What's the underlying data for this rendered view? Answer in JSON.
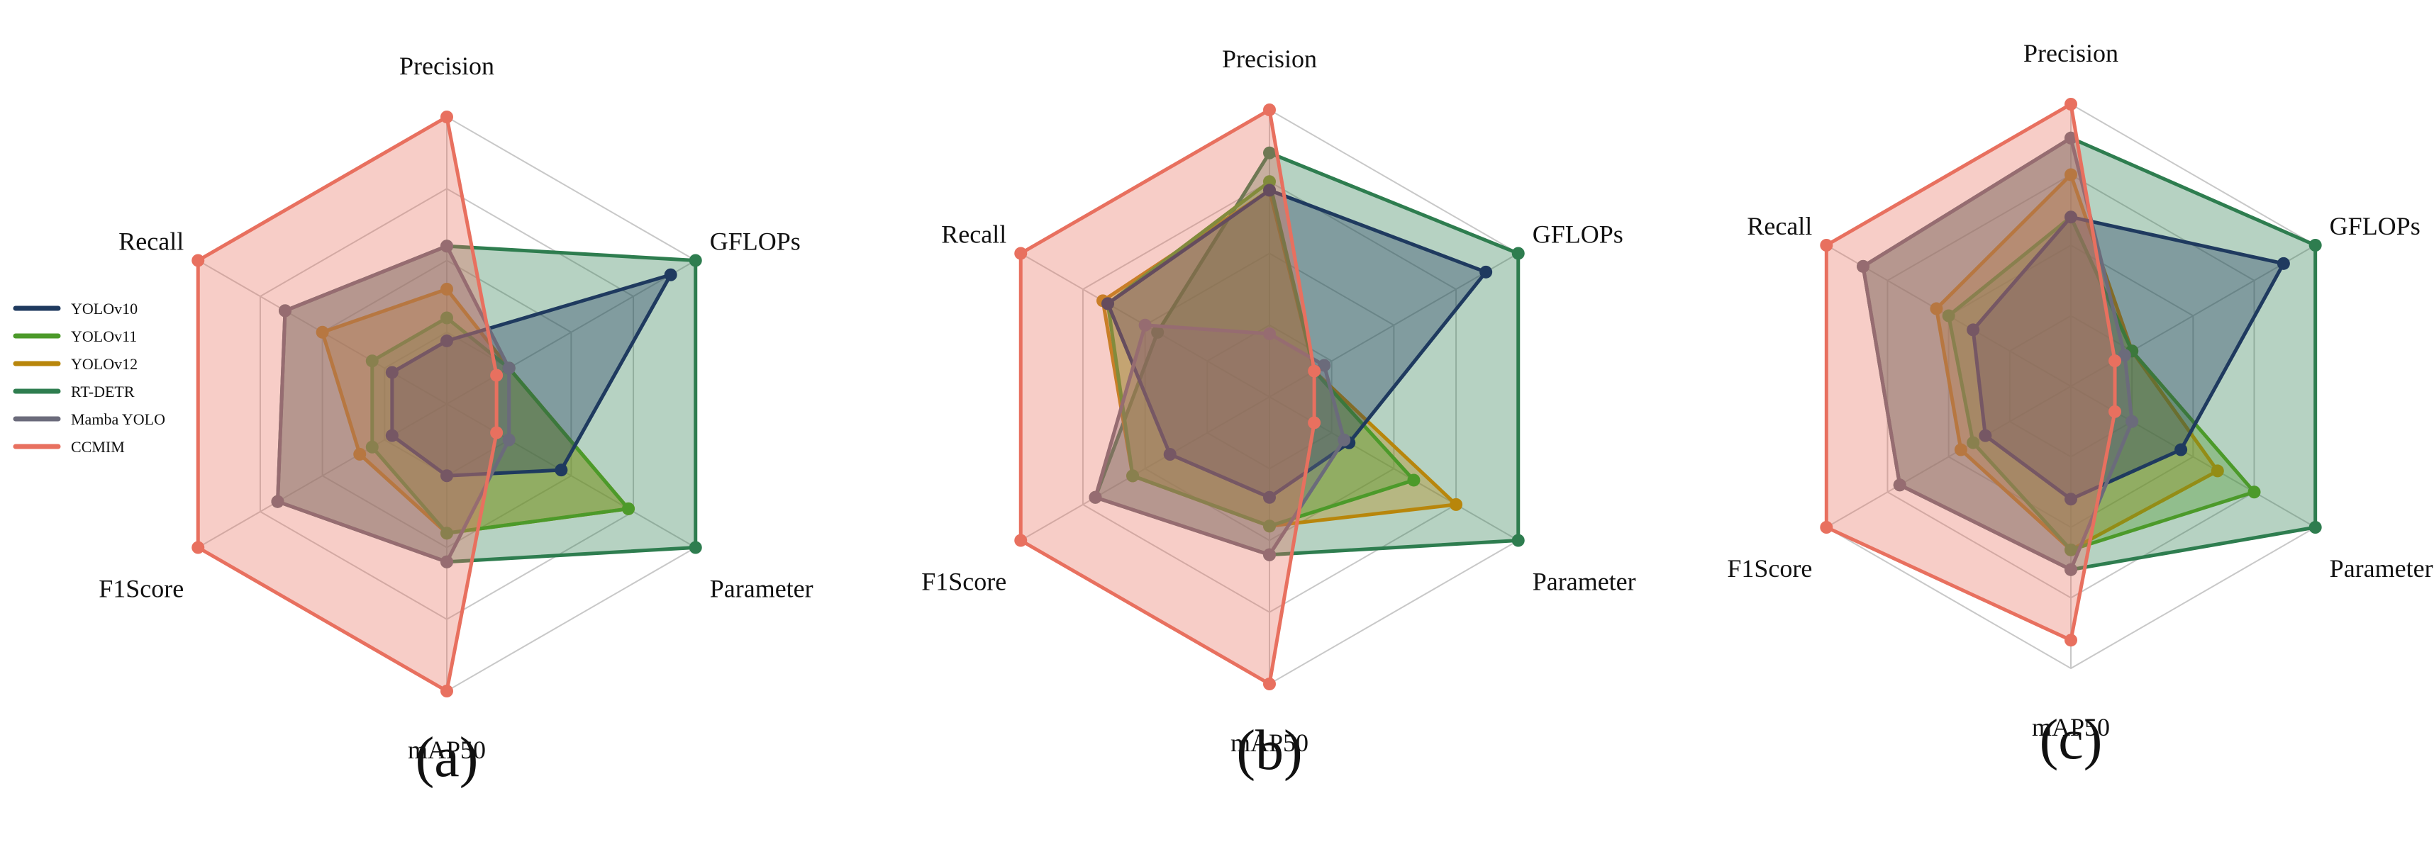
{
  "chart_data": {
    "type": "radar",
    "axes": [
      "Precision",
      "GFLOPs",
      "Parameter",
      "mAP50",
      "F1Score",
      "Recall"
    ],
    "range": [
      0,
      1
    ],
    "rings": 4,
    "grid": true,
    "legend_position": "left",
    "series_colors": {
      "YOLOv10": "#1f3a5f",
      "YOLOv11": "#4c9a2a",
      "YOLOv12": "#b8860b",
      "RT-DETR": "#2e7d4f",
      "Mamba YOLO": "#6b6b7b",
      "CCMIM": "#e8705f"
    },
    "panels": [
      {
        "label": "(a)",
        "series": [
          {
            "name": "YOLOv10",
            "values": [
              0.22,
              0.9,
              0.46,
              0.25,
              0.22,
              0.22
            ]
          },
          {
            "name": "YOLOv11",
            "values": [
              0.3,
              0.25,
              0.73,
              0.45,
              0.3,
              0.3
            ]
          },
          {
            "name": "YOLOv12",
            "values": [
              0.4,
              0.25,
              0.73,
              0.45,
              0.35,
              0.5
            ]
          },
          {
            "name": "RT-DETR",
            "values": [
              0.55,
              1.0,
              1.0,
              0.55,
              0.68,
              0.65
            ]
          },
          {
            "name": "Mamba YOLO",
            "values": [
              0.55,
              0.25,
              0.25,
              0.55,
              0.68,
              0.65
            ]
          },
          {
            "name": "CCMIM",
            "values": [
              1.0,
              0.2,
              0.2,
              1.0,
              1.0,
              1.0
            ]
          }
        ]
      },
      {
        "label": "(b)",
        "series": [
          {
            "name": "YOLOv10",
            "values": [
              0.72,
              0.87,
              0.32,
              0.35,
              0.4,
              0.65
            ]
          },
          {
            "name": "YOLOv11",
            "values": [
              0.75,
              0.18,
              0.58,
              0.45,
              0.55,
              0.65
            ]
          },
          {
            "name": "YOLOv12",
            "values": [
              0.72,
              0.18,
              0.75,
              0.45,
              0.55,
              0.67
            ]
          },
          {
            "name": "RT-DETR",
            "values": [
              0.85,
              1.0,
              1.0,
              0.55,
              0.7,
              0.45
            ]
          },
          {
            "name": "Mamba YOLO",
            "values": [
              0.22,
              0.22,
              0.3,
              0.55,
              0.7,
              0.5
            ]
          },
          {
            "name": "CCMIM",
            "values": [
              1.0,
              0.18,
              0.18,
              1.0,
              1.0,
              1.0
            ]
          }
        ]
      },
      {
        "label": "(c)",
        "series": [
          {
            "name": "YOLOv10",
            "values": [
              0.6,
              0.87,
              0.45,
              0.4,
              0.35,
              0.4
            ]
          },
          {
            "name": "YOLOv11",
            "values": [
              0.6,
              0.25,
              0.75,
              0.58,
              0.4,
              0.5
            ]
          },
          {
            "name": "YOLOv12",
            "values": [
              0.75,
              0.25,
              0.6,
              0.58,
              0.45,
              0.55
            ]
          },
          {
            "name": "RT-DETR",
            "values": [
              0.88,
              1.0,
              1.0,
              0.65,
              0.7,
              0.85
            ]
          },
          {
            "name": "Mamba YOLO",
            "values": [
              0.88,
              0.22,
              0.25,
              0.65,
              0.7,
              0.85
            ]
          },
          {
            "name": "CCMIM",
            "values": [
              1.0,
              0.18,
              0.18,
              0.9,
              1.0,
              1.0
            ]
          }
        ]
      }
    ]
  }
}
